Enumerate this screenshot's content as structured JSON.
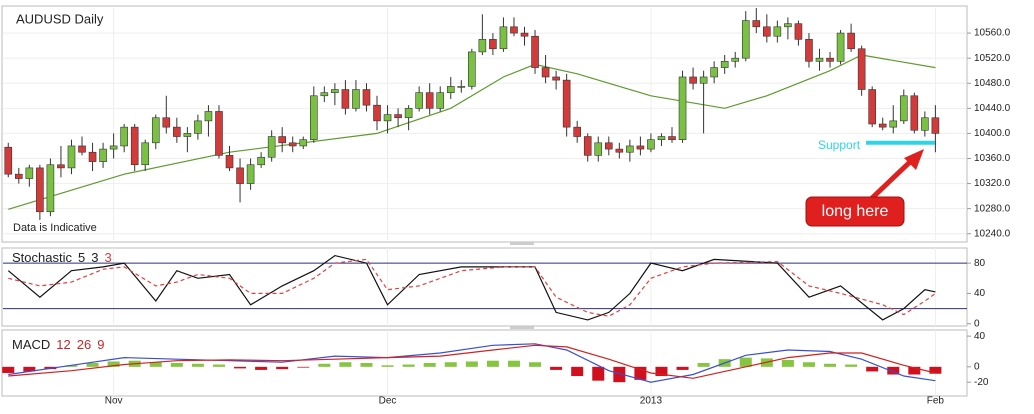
{
  "chart_data": [
    {
      "type": "candlestick",
      "title": "AUDUSD Daily",
      "note": "Data is Indicative",
      "up_color": "#7ac143",
      "down_color": "#d33a3a",
      "open": [
        10378,
        10335,
        10328,
        10345,
        10275,
        10350,
        10345,
        10380,
        10370,
        10355,
        10375,
        10380,
        10410,
        10350,
        10385,
        10425,
        10410,
        10395,
        10400,
        10420,
        10435,
        10365,
        10345,
        10320,
        10350,
        10362,
        10395,
        10385,
        10380,
        10390,
        10460,
        10465,
        10470,
        10440,
        10470,
        10445,
        10420,
        10430,
        10425,
        10440,
        10465,
        10440,
        10465,
        10475,
        10475,
        10530,
        10550,
        10535,
        10570,
        10560,
        10555,
        10505,
        10490,
        10485,
        10410,
        10395,
        10365,
        10385,
        10375,
        10370,
        10380,
        10375,
        10390,
        10395,
        10390,
        10490,
        10480,
        10490,
        10505,
        10515,
        10520,
        10580,
        10570,
        10555,
        10570,
        10575,
        10550,
        10515,
        10520,
        10515,
        10560,
        10535,
        10470,
        10415,
        10410,
        10420,
        10460,
        10405,
        10425
      ],
      "high": [
        10385,
        10345,
        10350,
        10350,
        10360,
        10380,
        10390,
        10395,
        10385,
        10385,
        10400,
        10415,
        10415,
        10390,
        10430,
        10460,
        10425,
        10410,
        10430,
        10445,
        10445,
        10380,
        10360,
        10360,
        10370,
        10405,
        10410,
        10395,
        10395,
        10475,
        10475,
        10480,
        10485,
        10485,
        10480,
        10460,
        10445,
        10440,
        10445,
        10475,
        10480,
        10475,
        10490,
        10485,
        10535,
        10590,
        10560,
        10585,
        10585,
        10570,
        10565,
        10525,
        10500,
        10495,
        10420,
        10400,
        10395,
        10395,
        10385,
        10390,
        10395,
        10400,
        10400,
        10410,
        10500,
        10505,
        10500,
        10515,
        10525,
        10530,
        10595,
        10600,
        10590,
        10580,
        10585,
        10580,
        10560,
        10535,
        10530,
        10565,
        10575,
        10540,
        10475,
        10425,
        10445,
        10470,
        10465,
        10435,
        10445
      ],
      "low": [
        10330,
        10320,
        10315,
        10262,
        10268,
        10330,
        10335,
        10365,
        10340,
        10345,
        10360,
        10370,
        10340,
        10340,
        10375,
        10400,
        10385,
        10370,
        10390,
        10395,
        10360,
        10340,
        10290,
        10310,
        10345,
        10355,
        10370,
        10370,
        10375,
        10385,
        10450,
        10445,
        10430,
        10435,
        10435,
        10405,
        10400,
        10410,
        10405,
        10435,
        10430,
        10435,
        10455,
        10465,
        10470,
        10525,
        10525,
        10530,
        10555,
        10540,
        10495,
        10480,
        10470,
        10395,
        10385,
        10355,
        10355,
        10365,
        10360,
        10355,
        10365,
        10370,
        10380,
        10385,
        10385,
        10470,
        10400,
        10480,
        10495,
        10505,
        10515,
        10560,
        10545,
        10545,
        10550,
        10540,
        10505,
        10500,
        10505,
        10510,
        10530,
        10460,
        10410,
        10405,
        10400,
        10415,
        10400,
        10395,
        10370
      ],
      "close": [
        10335,
        10328,
        10345,
        10275,
        10350,
        10345,
        10380,
        10370,
        10355,
        10375,
        10380,
        10410,
        10350,
        10385,
        10425,
        10410,
        10395,
        10400,
        10420,
        10435,
        10365,
        10345,
        10320,
        10350,
        10362,
        10395,
        10385,
        10380,
        10390,
        10460,
        10465,
        10470,
        10440,
        10470,
        10445,
        10420,
        10430,
        10425,
        10440,
        10465,
        10440,
        10465,
        10475,
        10475,
        10530,
        10550,
        10535,
        10570,
        10560,
        10555,
        10505,
        10490,
        10485,
        10410,
        10395,
        10365,
        10385,
        10375,
        10370,
        10380,
        10375,
        10390,
        10395,
        10390,
        10490,
        10480,
        10490,
        10505,
        10515,
        10520,
        10580,
        10570,
        10555,
        10570,
        10575,
        10550,
        10515,
        10520,
        10515,
        10560,
        10535,
        10470,
        10415,
        10410,
        10420,
        10460,
        10405,
        10425,
        10400
      ],
      "moving_average": {
        "color": "#5f9a2e",
        "x": [
          0,
          11,
          21,
          35,
          42,
          47,
          50,
          54,
          61,
          68,
          72,
          78,
          81,
          88
        ],
        "values": [
          10279,
          10335,
          10370,
          10400,
          10440,
          10490,
          10510,
          10495,
          10460,
          10440,
          10460,
          10500,
          10525,
          10505
        ]
      },
      "support": {
        "label": "Support",
        "value": 10385,
        "color": "#2fd3e8"
      },
      "annotation": "long here",
      "xlim": [
        -0.5,
        91
      ],
      "ylim": [
        10230,
        10600
      ],
      "yticks": [
        {
          "value": 10240,
          "label": "10240.0"
        },
        {
          "value": 10280,
          "label": "10280.0"
        },
        {
          "value": 10320,
          "label": "10320.0"
        },
        {
          "value": 10360,
          "label": "10360.0"
        },
        {
          "value": 10400,
          "label": "10400.0"
        },
        {
          "value": 10440,
          "label": "10440.0"
        },
        {
          "value": 10480,
          "label": "10480.0"
        },
        {
          "value": 10520,
          "label": "10520.0"
        },
        {
          "value": 10560,
          "label": "10560.0"
        }
      ],
      "grid": true
    },
    {
      "type": "stochastic",
      "title": "Stochastic",
      "parameters": [
        5,
        3,
        3
      ],
      "parameter_colors": [
        "#222",
        "#222",
        "#d33a3a"
      ],
      "x": [
        0,
        3,
        6,
        9,
        11,
        14,
        16,
        18,
        21,
        23,
        26,
        29,
        31,
        34,
        36,
        39,
        43,
        47,
        50,
        52,
        55,
        57,
        59,
        61,
        64,
        67,
        73,
        76,
        79,
        83,
        85,
        87,
        88
      ],
      "series": [
        {
          "color": "#111",
          "values": [
            70,
            35,
            70,
            75,
            80,
            30,
            70,
            60,
            65,
            25,
            50,
            70,
            90,
            80,
            25,
            65,
            75,
            75,
            75,
            15,
            5,
            15,
            40,
            80,
            70,
            85,
            80,
            35,
            50,
            5,
            20,
            45,
            42
          ]
        },
        {
          "color": "#e04040",
          "dashed": true,
          "values": [
            60,
            50,
            55,
            72,
            75,
            50,
            55,
            65,
            60,
            40,
            40,
            60,
            80,
            85,
            45,
            50,
            70,
            75,
            75,
            35,
            15,
            10,
            25,
            60,
            75,
            80,
            82,
            50,
            40,
            25,
            12,
            30,
            40
          ]
        }
      ],
      "levels": [
        80,
        20
      ],
      "level_color": "#2b2f7a",
      "xlim": [
        -0.5,
        91
      ],
      "ylim": [
        -3,
        100
      ],
      "yticks": [
        0,
        40,
        80
      ]
    },
    {
      "type": "macd",
      "title": "MACD",
      "parameters": [
        12,
        26,
        9
      ],
      "parameter_colors": [
        "#c62828",
        "#c62828",
        "#c62828"
      ],
      "histogram": {
        "positive_color": "#86c540",
        "negative_color": "#d0101e",
        "x": [
          0,
          2,
          4,
          6,
          8,
          10,
          12,
          14,
          16,
          18,
          20,
          22,
          24,
          26,
          28,
          30,
          32,
          34,
          36,
          38,
          40,
          42,
          44,
          46,
          48,
          50,
          52,
          54,
          56,
          58,
          60,
          62,
          64,
          66,
          68,
          70,
          72,
          74,
          76,
          78,
          80,
          82,
          84,
          86,
          88
        ],
        "values": [
          -8,
          -6,
          -3,
          2,
          5,
          7,
          8,
          6,
          5,
          4,
          3,
          -2,
          -4,
          -3,
          -1,
          4,
          6,
          5,
          2,
          3,
          5,
          6,
          7,
          8,
          8,
          6,
          -4,
          -12,
          -18,
          -20,
          -17,
          -12,
          -4,
          5,
          10,
          12,
          11,
          9,
          6,
          4,
          3,
          -6,
          -10,
          -10,
          -9
        ]
      },
      "x": [
        0,
        6,
        11,
        16,
        21,
        26,
        31,
        36,
        41,
        46,
        50,
        53,
        57,
        61,
        65,
        70,
        74,
        78,
        81,
        85,
        88
      ],
      "series": [
        {
          "color": "#3a4fcf",
          "values": [
            -10,
            2,
            12,
            10,
            8,
            6,
            14,
            12,
            18,
            28,
            30,
            22,
            -5,
            -20,
            -10,
            15,
            22,
            20,
            10,
            -12,
            -18
          ]
        },
        {
          "color": "#d32020",
          "values": [
            -12,
            -5,
            3,
            8,
            9,
            8,
            10,
            12,
            14,
            22,
            28,
            26,
            10,
            -8,
            -15,
            0,
            12,
            18,
            18,
            2,
            -8
          ]
        }
      ],
      "xlim": [
        -0.5,
        91
      ],
      "ylim": [
        -38,
        48
      ],
      "yticks": [
        -20,
        0,
        40
      ],
      "xticks": [
        {
          "value": 10,
          "label": "Nov"
        },
        {
          "value": 36,
          "label": "Dec"
        },
        {
          "value": 61,
          "label": "2013"
        },
        {
          "value": 88,
          "label": "Feb"
        }
      ]
    }
  ]
}
